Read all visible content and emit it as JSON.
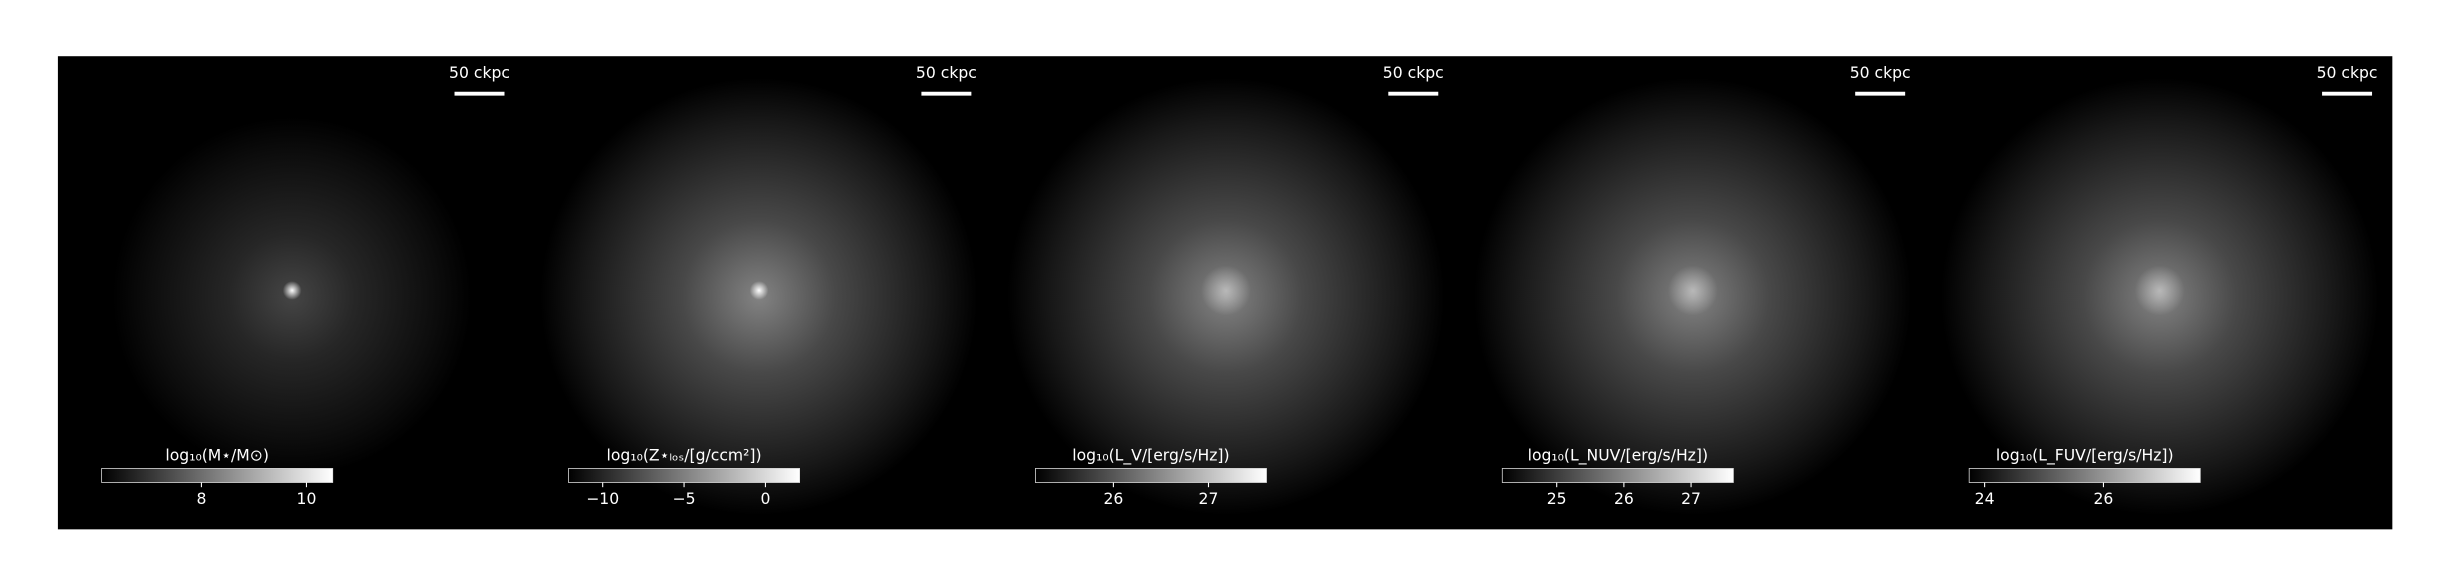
{
  "chart_data": [
    {
      "type": "image",
      "scalebar_label": "50 ckpc",
      "colorbar_label": "log₁₀(M⋆/M⊙)",
      "clim": [
        6.1,
        10.5
      ],
      "cticks": [
        8,
        10
      ]
    },
    {
      "type": "image",
      "scalebar_label": "50 ckpc",
      "colorbar_label": "log₁₀(Z⋆ₗₒₛ/[g/ccm²])",
      "clim": [
        -12.1,
        2.1
      ],
      "cticks": [
        {
          "value": -10,
          "label": "−10"
        },
        {
          "value": -5,
          "label": "−5"
        },
        0
      ]
    },
    {
      "type": "image",
      "scalebar_label": "50 ckpc",
      "colorbar_label": "log₁₀(L_V/[erg/s/Hz])",
      "clim": [
        25.18,
        27.61
      ],
      "cticks": [
        26,
        27
      ]
    },
    {
      "type": "image",
      "scalebar_label": "50 ckpc",
      "colorbar_label": "log₁₀(L_NUV/[erg/s/Hz])",
      "clim": [
        24.19,
        27.63
      ],
      "cticks": [
        25,
        26,
        27
      ]
    },
    {
      "type": "image",
      "scalebar_label": "50 ckpc",
      "colorbar_label": "log₁₀(L_FUV/[erg/s/Hz])",
      "clim": [
        23.74,
        27.63
      ],
      "cticks": [
        24,
        26
      ]
    }
  ]
}
